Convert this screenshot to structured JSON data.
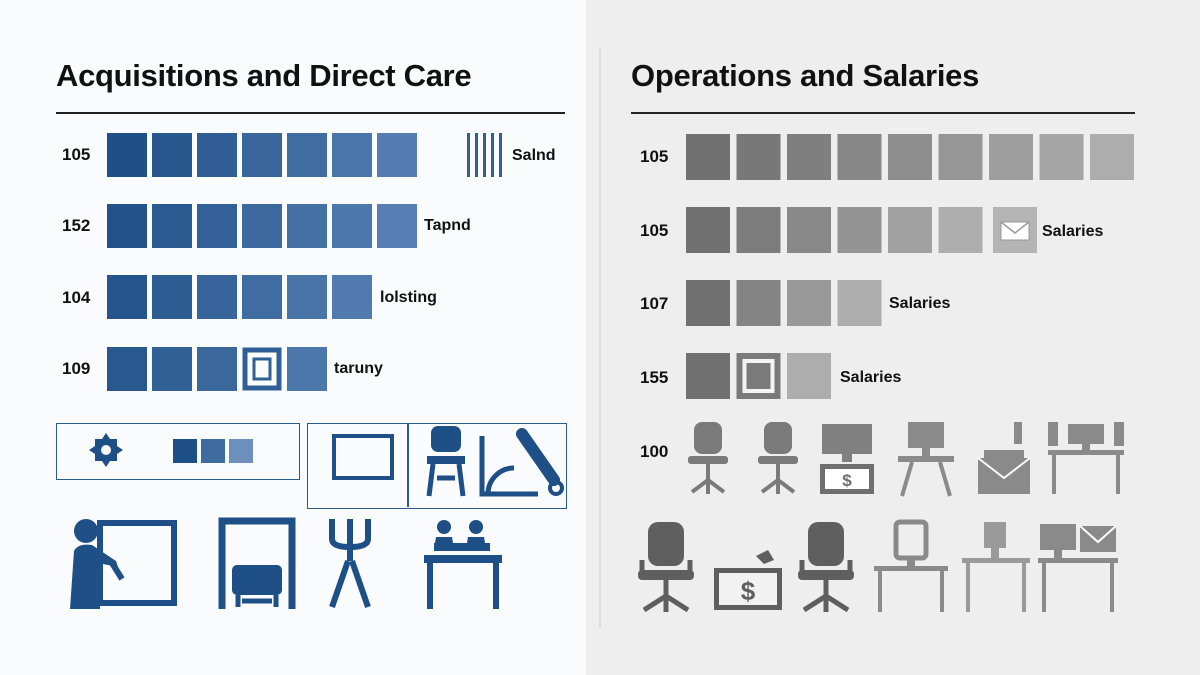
{
  "left_panel": {
    "title": "Acquisitions and Direct Care",
    "rows": [
      {
        "label": "105",
        "count": 8,
        "tag": "Salnd"
      },
      {
        "label": "152",
        "count": 7,
        "tag": "Tapnd"
      },
      {
        "label": "104",
        "count": 6,
        "tag": "lolsting"
      },
      {
        "label": "109",
        "count": 5,
        "tag": "taruny"
      }
    ]
  },
  "right_panel": {
    "title": "Operations and Salaries",
    "rows": [
      {
        "label": "105",
        "count": 9,
        "tag": ""
      },
      {
        "label": "105",
        "count": 6,
        "tag": "Salaries"
      },
      {
        "label": "107",
        "count": 4,
        "tag": "Salaries"
      },
      {
        "label": "155",
        "count": 3,
        "tag": "Salaries"
      }
    ],
    "icon_row_label": "100"
  },
  "chart_data": [
    {
      "type": "bar",
      "title": "Acquisitions and Direct Care",
      "categories": [
        "105",
        "152",
        "104",
        "109"
      ],
      "values": [
        8,
        7,
        6,
        5
      ],
      "tags": [
        "Salnd",
        "Tapnd",
        "lolsting",
        "taruny"
      ],
      "color": "#1e4f86"
    },
    {
      "type": "bar",
      "title": "Operations and Salaries",
      "categories": [
        "105",
        "105",
        "107",
        "155"
      ],
      "values": [
        9,
        6,
        4,
        3
      ],
      "tags": [
        "",
        "Salaries",
        "Salaries",
        "Salaries"
      ],
      "color": "#6f6f6f"
    }
  ],
  "icons": {
    "left": [
      "target-icon",
      "mini-squares-icon",
      "frame-icon",
      "chair-icon",
      "drafting-tool-icon",
      "worker-board-icon",
      "machine-frame-icon",
      "tripod-icon",
      "team-table-icon"
    ],
    "right": [
      "chair-icon",
      "chair-icon",
      "monitor-money-icon",
      "monitor-desk-icon",
      "lamp-mail-icon",
      "desk-monitor-icon",
      "chair-icon",
      "money-bill-icon",
      "chair-icon",
      "desk-monitor-icon",
      "desk-monitor-icon",
      "desk-mail-icon"
    ]
  },
  "colors": {
    "left_accent": "#1e4f86",
    "right_accent": "#6f6f6f"
  }
}
